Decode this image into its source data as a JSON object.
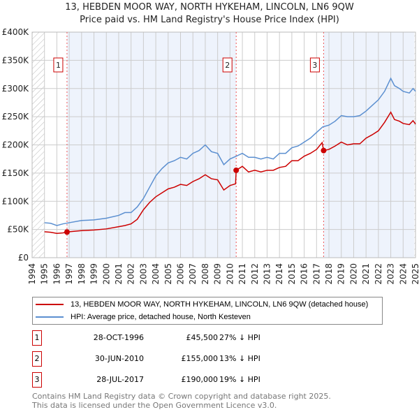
{
  "chart_data": {
    "type": "line",
    "title": "13, HEBDEN MOOR WAY, NORTH HYKEHAM, LINCOLN, LN6 9QW",
    "subtitle": "Price paid vs. HM Land Registry's House Price Index (HPI)",
    "xlim": [
      1994,
      2025
    ],
    "ylim": [
      0,
      400000
    ],
    "x_ticks": [
      "1994",
      "1995",
      "1996",
      "1997",
      "1998",
      "1999",
      "2000",
      "2001",
      "2002",
      "2003",
      "2004",
      "2005",
      "2006",
      "2007",
      "2008",
      "2009",
      "2010",
      "2011",
      "2012",
      "2013",
      "2014",
      "2015",
      "2016",
      "2017",
      "2018",
      "2019",
      "2020",
      "2021",
      "2022",
      "2023",
      "2024",
      "2025"
    ],
    "y_ticks": [
      {
        "v": 0,
        "label": "£0"
      },
      {
        "v": 50000,
        "label": "£50K"
      },
      {
        "v": 100000,
        "label": "£100K"
      },
      {
        "v": 150000,
        "label": "£150K"
      },
      {
        "v": 200000,
        "label": "£200K"
      },
      {
        "v": 250000,
        "label": "£250K"
      },
      {
        "v": 300000,
        "label": "£300K"
      },
      {
        "v": 350000,
        "label": "£350K"
      },
      {
        "v": 400000,
        "label": "£400K"
      }
    ],
    "grid": true,
    "series": [
      {
        "name": "13, HEBDEN MOOR WAY, NORTH HYKEHAM, LINCOLN, LN6 9QW (detached house)",
        "color": "#cc0000",
        "x": [
          1995,
          1995.5,
          1996,
          1996.5,
          1996.82,
          1997,
          1998,
          1999,
          2000,
          2001,
          2001.5,
          2002,
          2002.5,
          2003,
          2003.5,
          2004,
          2004.5,
          2005,
          2005.5,
          2006,
          2006.5,
          2007,
          2007.5,
          2008,
          2008.5,
          2009,
          2009.5,
          2010,
          2010.45,
          2010.5,
          2011,
          2011.5,
          2012,
          2012.5,
          2013,
          2013.5,
          2014,
          2014.5,
          2015,
          2015.5,
          2016,
          2016.5,
          2017,
          2017.45,
          2017.57,
          2018,
          2018.5,
          2019,
          2019.5,
          2020,
          2020.5,
          2021,
          2021.5,
          2022,
          2022.5,
          2023,
          2023.3,
          2023.7,
          2024,
          2024.5,
          2024.8,
          2025
        ],
        "y": [
          46000,
          45000,
          43000,
          44000,
          45500,
          46000,
          48000,
          49000,
          51000,
          55000,
          57000,
          60000,
          68000,
          85000,
          98000,
          108000,
          115000,
          122000,
          125000,
          130000,
          128000,
          135000,
          140000,
          147000,
          140000,
          138000,
          120000,
          128000,
          131000,
          155000,
          162000,
          152000,
          155000,
          152000,
          155000,
          155000,
          160000,
          162000,
          172000,
          172000,
          180000,
          185000,
          192000,
          204000,
          190000,
          192000,
          198000,
          205000,
          200000,
          202000,
          202000,
          212000,
          218000,
          225000,
          240000,
          258000,
          245000,
          242000,
          238000,
          236000,
          243000,
          237000
        ]
      },
      {
        "name": "HPI: Average price, detached house, North Kesteven",
        "color": "#5b8fd0",
        "x": [
          1995,
          1995.5,
          1996,
          1996.5,
          1997,
          1998,
          1999,
          2000,
          2001,
          2001.5,
          2002,
          2002.5,
          2003,
          2003.5,
          2004,
          2004.5,
          2005,
          2005.5,
          2006,
          2006.5,
          2007,
          2007.5,
          2008,
          2008.5,
          2009,
          2009.5,
          2010,
          2010.5,
          2011,
          2011.5,
          2012,
          2012.5,
          2013,
          2013.5,
          2014,
          2014.5,
          2015,
          2015.5,
          2016,
          2016.5,
          2017,
          2017.5,
          2018,
          2018.5,
          2019,
          2019.5,
          2020,
          2020.5,
          2021,
          2021.5,
          2022,
          2022.5,
          2023,
          2023.3,
          2023.7,
          2024,
          2024.5,
          2024.8,
          2025
        ],
        "y": [
          62000,
          61000,
          57000,
          60000,
          62000,
          66000,
          67000,
          70000,
          75000,
          80000,
          80000,
          90000,
          105000,
          125000,
          145000,
          158000,
          168000,
          172000,
          178000,
          175000,
          185000,
          190000,
          200000,
          188000,
          185000,
          165000,
          175000,
          180000,
          185000,
          178000,
          178000,
          175000,
          178000,
          175000,
          185000,
          185000,
          195000,
          198000,
          205000,
          212000,
          222000,
          232000,
          235000,
          242000,
          252000,
          250000,
          250000,
          252000,
          260000,
          270000,
          280000,
          295000,
          318000,
          305000,
          300000,
          295000,
          292000,
          300000,
          295000
        ]
      }
    ],
    "sales": [
      {
        "n": "1",
        "x": 1996.82,
        "y": 45500,
        "date": "28-OCT-1996",
        "price": "£45,500",
        "hpi": "27% ↓ HPI"
      },
      {
        "n": "2",
        "x": 2010.5,
        "y": 155000,
        "date": "30-JUN-2010",
        "price": "£155,000",
        "hpi": "13% ↓ HPI"
      },
      {
        "n": "3",
        "x": 2017.57,
        "y": 190000,
        "date": "28-JUL-2017",
        "price": "£190,000",
        "hpi": "19% ↓ HPI"
      }
    ],
    "legend_placement": "below"
  },
  "footer": {
    "line1": "Contains HM Land Registry data © Crown copyright and database right 2025.",
    "line2": "This data is licensed under the Open Government Licence v3.0."
  }
}
